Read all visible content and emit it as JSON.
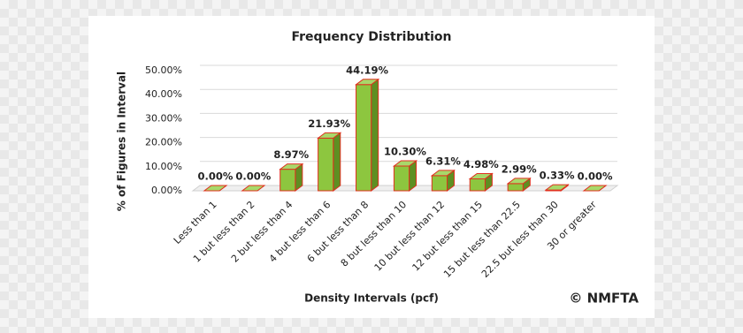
{
  "chart_data": {
    "type": "bar3d",
    "title": "Frequency Distribution",
    "x_label": "Density Intervals (pcf)",
    "y_label": "% of Figures in Interval",
    "annotation": "© NMFTA",
    "categories": [
      "Less than 1",
      "1 but less than 2",
      "2 but less than 4",
      "4 but less than 6",
      "6 but less than 8",
      "8 but less than 10",
      "10 but less than 12",
      "12 but less than 15",
      "15 but less than 22.5",
      "22.5 but less than 30",
      "30 or greater"
    ],
    "values": [
      0,
      0,
      8.97,
      21.93,
      44.19,
      10.3,
      6.31,
      4.98,
      2.99,
      0.33,
      0
    ],
    "value_labels": [
      "0.00%",
      "0.00%",
      "8.97%",
      "21.93%",
      "44.19%",
      "10.30%",
      "6.31%",
      "4.98%",
      "2.99%",
      "0.33%",
      "0.00%"
    ],
    "color": "#8dc63f",
    "edge_color": "#e0301e",
    "ylim": [
      0,
      50
    ],
    "yticks": [
      {
        "value": 0,
        "label": "0.00%"
      },
      {
        "value": 10,
        "label": "10.00%"
      },
      {
        "value": 20,
        "label": "20.00%"
      },
      {
        "value": 30,
        "label": "30.00%"
      },
      {
        "value": 40,
        "label": "40.00%"
      },
      {
        "value": 50,
        "label": "50.00%"
      }
    ],
    "grid": true
  }
}
